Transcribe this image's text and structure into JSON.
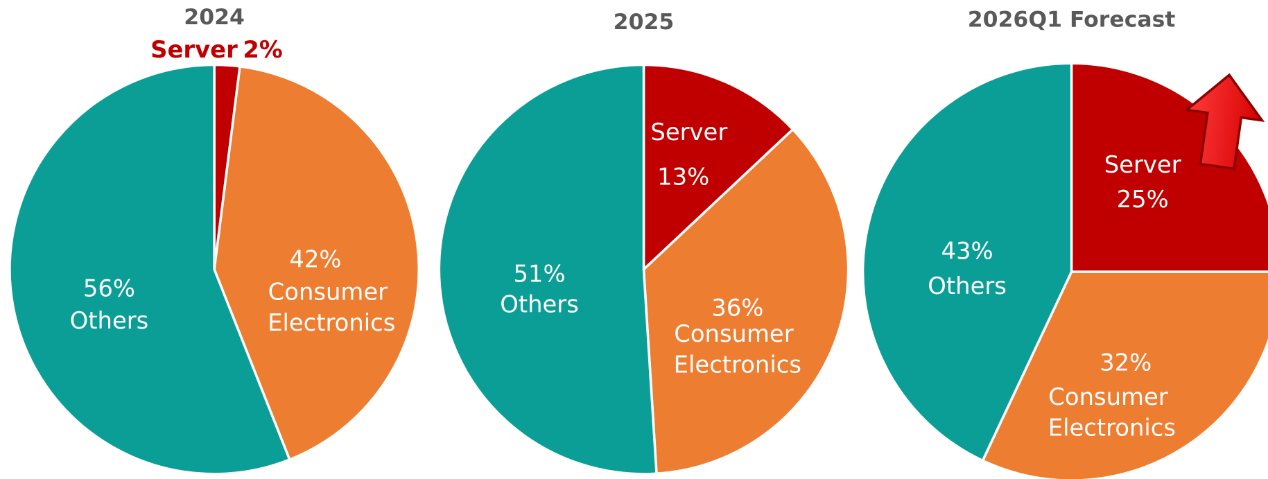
{
  "chart_data": [
    {
      "type": "pie",
      "title": "2024",
      "labels": [
        "Server",
        "Consumer Electronics",
        "Others"
      ],
      "values": [
        2,
        42,
        56
      ],
      "value_labels": [
        "2%",
        "42%",
        "56%"
      ],
      "colors": [
        "#c00000",
        "#ed7d31",
        "#0a9e96"
      ]
    },
    {
      "type": "pie",
      "title": "2025",
      "labels": [
        "Server",
        "Consumer Electronics",
        "Others"
      ],
      "values": [
        13,
        36,
        51
      ],
      "value_labels": [
        "13%",
        "36%",
        "51%"
      ],
      "colors": [
        "#c00000",
        "#ed7d31",
        "#0a9e96"
      ]
    },
    {
      "type": "pie",
      "title": "2026Q1 Forecast",
      "labels": [
        "Server",
        "Consumer Electronics",
        "Others"
      ],
      "values": [
        25,
        32,
        43
      ],
      "value_labels": [
        "25%",
        "32%",
        "43%"
      ],
      "colors": [
        "#c00000",
        "#ed7d31",
        "#0a9e96"
      ]
    }
  ]
}
